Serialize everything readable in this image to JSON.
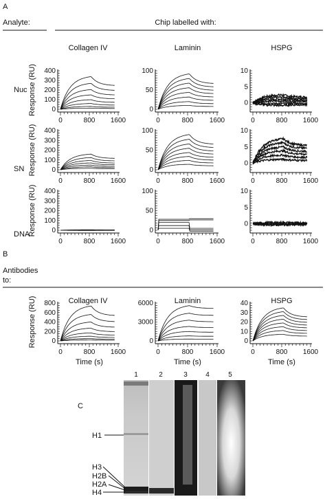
{
  "panel_a": {
    "letter": "A",
    "analyte_label": "Analyte:",
    "chip_label": "Chip labelled with:",
    "columns": [
      "Collagen IV",
      "Laminin",
      "HSPG"
    ],
    "rows": [
      "Nuc",
      "SN",
      "DNA"
    ],
    "ylabel": "Response (RU)",
    "xticks": [
      "0",
      "800",
      "1600"
    ]
  },
  "panel_b": {
    "letter": "B",
    "label_line1": "Antibodies",
    "label_line2": "to:",
    "columns": [
      "Collagen IV",
      "Laminin",
      "HSPG"
    ],
    "ylabel": "Response (RU)",
    "xlabel": "Time (s)",
    "xticks": [
      "0",
      "800",
      "1600"
    ]
  },
  "panel_c": {
    "letter": "C",
    "lanes": [
      "1",
      "2",
      "3",
      "4",
      "5"
    ],
    "bands": [
      "H1",
      "H3",
      "H2B",
      "H2A",
      "H4"
    ]
  },
  "chart_data": [
    {
      "type": "line",
      "panel": "A",
      "row": "Nuc",
      "column": "Collagen IV",
      "ylim": [
        0,
        400
      ],
      "yticks": [
        0,
        100,
        200,
        300,
        400
      ],
      "xlim": [
        0,
        1600
      ],
      "series": [
        {
          "values_peak": [
            340,
            270,
            205,
            150,
            100,
            60,
            30,
            12
          ]
        }
      ]
    },
    {
      "type": "line",
      "panel": "A",
      "row": "Nuc",
      "column": "Laminin",
      "ylim": [
        0,
        100
      ],
      "yticks": [
        0,
        50,
        100
      ],
      "xlim": [
        0,
        1600
      ],
      "series": [
        {
          "values_peak": [
            92,
            80,
            68,
            56,
            44,
            32,
            20,
            10
          ]
        }
      ]
    },
    {
      "type": "line",
      "panel": "A",
      "row": "Nuc",
      "column": "HSPG",
      "ylim": [
        -2,
        10
      ],
      "yticks": [
        0,
        5,
        10
      ],
      "xlim": [
        0,
        1600
      ],
      "series": [
        {
          "values_peak": [
            2.5,
            1.8,
            1.2,
            0.6,
            -0.2,
            -0.8
          ]
        }
      ]
    },
    {
      "type": "line",
      "panel": "A",
      "row": "SN",
      "column": "Collagen IV",
      "ylim": [
        0,
        400
      ],
      "yticks": [
        0,
        100,
        200,
        300,
        400
      ],
      "xlim": [
        0,
        1600
      ],
      "series": [
        {
          "values_peak": [
            160,
            125,
            95,
            70,
            48,
            30,
            15
          ]
        }
      ]
    },
    {
      "type": "line",
      "panel": "A",
      "row": "SN",
      "column": "Laminin",
      "ylim": [
        0,
        100
      ],
      "yticks": [
        0,
        50,
        100
      ],
      "xlim": [
        0,
        1600
      ],
      "series": [
        {
          "values_peak": [
            90,
            78,
            66,
            55,
            44,
            34,
            24,
            14
          ]
        }
      ]
    },
    {
      "type": "line",
      "panel": "A",
      "row": "SN",
      "column": "HSPG",
      "ylim": [
        -2,
        10
      ],
      "yticks": [
        0,
        5,
        10
      ],
      "xlim": [
        0,
        1600
      ],
      "series": [
        {
          "values_peak": [
            7.5,
            6.3,
            5,
            3.8,
            2.5,
            1.2
          ]
        }
      ]
    },
    {
      "type": "line",
      "panel": "A",
      "row": "DNA",
      "column": "Collagen IV",
      "ylim": [
        0,
        400
      ],
      "yticks": [
        0,
        100,
        200,
        300,
        400
      ],
      "xlim": [
        0,
        1600
      ],
      "series": [
        {
          "values_peak": [
            5,
            2,
            0,
            -2
          ]
        }
      ]
    },
    {
      "type": "line",
      "panel": "A",
      "row": "DNA",
      "column": "Laminin",
      "ylim": [
        0,
        100
      ],
      "yticks": [
        0,
        50,
        100
      ],
      "xlim": [
        0,
        1600
      ],
      "series": [
        {
          "values_peak": [
            28,
            25,
            20,
            12,
            5
          ]
        }
      ]
    },
    {
      "type": "line",
      "panel": "A",
      "row": "DNA",
      "column": "HSPG",
      "ylim": [
        -2,
        10
      ],
      "yticks": [
        0,
        5,
        10
      ],
      "xlim": [
        0,
        1600
      ],
      "series": [
        {
          "values_peak": [
            0.4,
            0.1,
            -0.2,
            -0.4
          ]
        }
      ]
    },
    {
      "type": "line",
      "panel": "B",
      "column": "Collagen IV",
      "ylim": [
        0,
        800
      ],
      "yticks": [
        0,
        200,
        400,
        600,
        800
      ],
      "xlim": [
        0,
        1600
      ],
      "series": [
        {
          "values_peak": [
            740,
            560,
            400,
            270,
            170,
            100,
            50,
            20
          ]
        }
      ]
    },
    {
      "type": "line",
      "panel": "B",
      "column": "Laminin",
      "ylim": [
        0,
        6000
      ],
      "yticks": [
        0,
        3000,
        6000
      ],
      "xlim": [
        0,
        1600
      ],
      "series": [
        {
          "values_peak": [
            5600,
            4400,
            3300,
            2300,
            1500,
            800,
            300
          ]
        }
      ]
    },
    {
      "type": "line",
      "panel": "B",
      "column": "HSPG",
      "ylim": [
        0,
        40
      ],
      "yticks": [
        0,
        10,
        20,
        30,
        40
      ],
      "xlim": [
        0,
        1600
      ],
      "series": [
        {
          "values_peak": [
            35,
            31,
            27,
            23,
            19,
            15,
            11,
            7
          ]
        }
      ]
    }
  ]
}
